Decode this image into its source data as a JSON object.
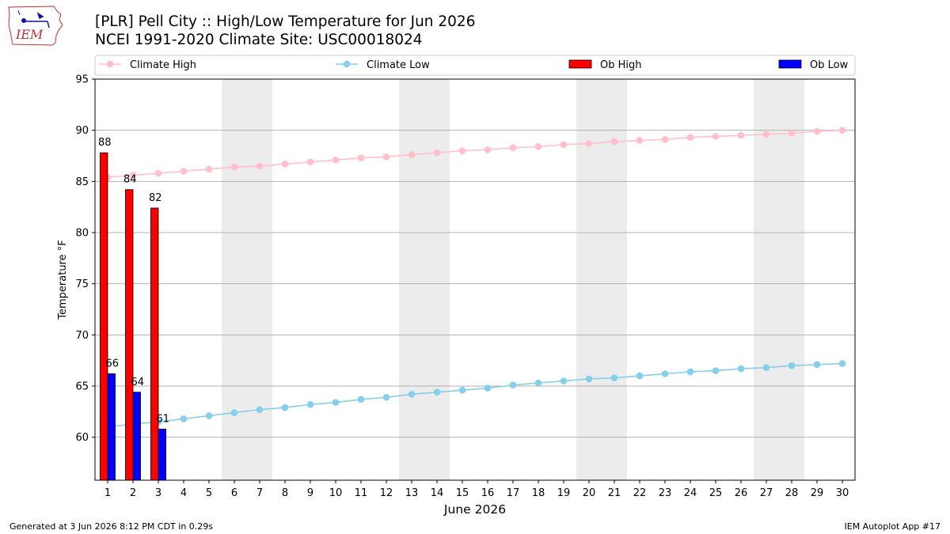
{
  "header": {
    "title_line1": "[PLR] Pell City :: High/Low Temperature for Jun 2026",
    "title_line2": "NCEI 1991-2020 Climate Site: USC00018024",
    "logo_text": "IEM"
  },
  "footer": {
    "generated": "Generated at 3 Jun 2026 8:12 PM CDT in 0.29s",
    "app": "IEM Autoplot App #17"
  },
  "chart_data": {
    "type": "bar",
    "xlabel": "June 2026",
    "ylabel": "Temperature °F",
    "ylim": [
      55.8,
      95
    ],
    "xlim": [
      0.5,
      30.5
    ],
    "yticks": [
      60,
      65,
      70,
      75,
      80,
      85,
      90,
      95
    ],
    "days": [
      1,
      2,
      3,
      4,
      5,
      6,
      7,
      8,
      9,
      10,
      11,
      12,
      13,
      14,
      15,
      16,
      17,
      18,
      19,
      20,
      21,
      22,
      23,
      24,
      25,
      26,
      27,
      28,
      29,
      30
    ],
    "weekend_shading": [
      [
        5.5,
        7.5
      ],
      [
        12.5,
        14.5
      ],
      [
        19.5,
        21.5
      ],
      [
        26.5,
        28.5
      ]
    ],
    "grid": "horizontal",
    "legend_position": "top",
    "series": [
      {
        "name": "Climate High",
        "kind": "line",
        "color": "#ffc0cb",
        "values": [
          85.4,
          85.6,
          85.8,
          86.0,
          86.2,
          86.4,
          86.5,
          86.7,
          86.9,
          87.1,
          87.3,
          87.4,
          87.6,
          87.8,
          88.0,
          88.1,
          88.3,
          88.4,
          88.6,
          88.7,
          88.9,
          89.0,
          89.1,
          89.3,
          89.4,
          89.5,
          89.6,
          89.7,
          89.9,
          90.0
        ]
      },
      {
        "name": "Climate Low",
        "kind": "line",
        "color": "#87ceeb",
        "values": [
          61.0,
          61.3,
          61.5,
          61.8,
          62.1,
          62.4,
          62.7,
          62.9,
          63.2,
          63.4,
          63.7,
          63.9,
          64.2,
          64.4,
          64.6,
          64.8,
          65.1,
          65.3,
          65.5,
          65.7,
          65.8,
          66.0,
          66.2,
          66.4,
          66.5,
          66.7,
          66.8,
          67.0,
          67.1,
          67.2
        ]
      },
      {
        "name": "Ob High",
        "kind": "bar",
        "color": "#ff0000",
        "days": [
          1,
          2,
          3
        ],
        "values": [
          87.8,
          84.2,
          82.4
        ],
        "labels": [
          "88",
          "84",
          "82"
        ]
      },
      {
        "name": "Ob Low",
        "kind": "bar",
        "color": "#0000ff",
        "days": [
          1,
          2,
          3
        ],
        "values": [
          66.2,
          64.4,
          60.8
        ],
        "labels": [
          "66",
          "64",
          "61"
        ]
      }
    ]
  }
}
